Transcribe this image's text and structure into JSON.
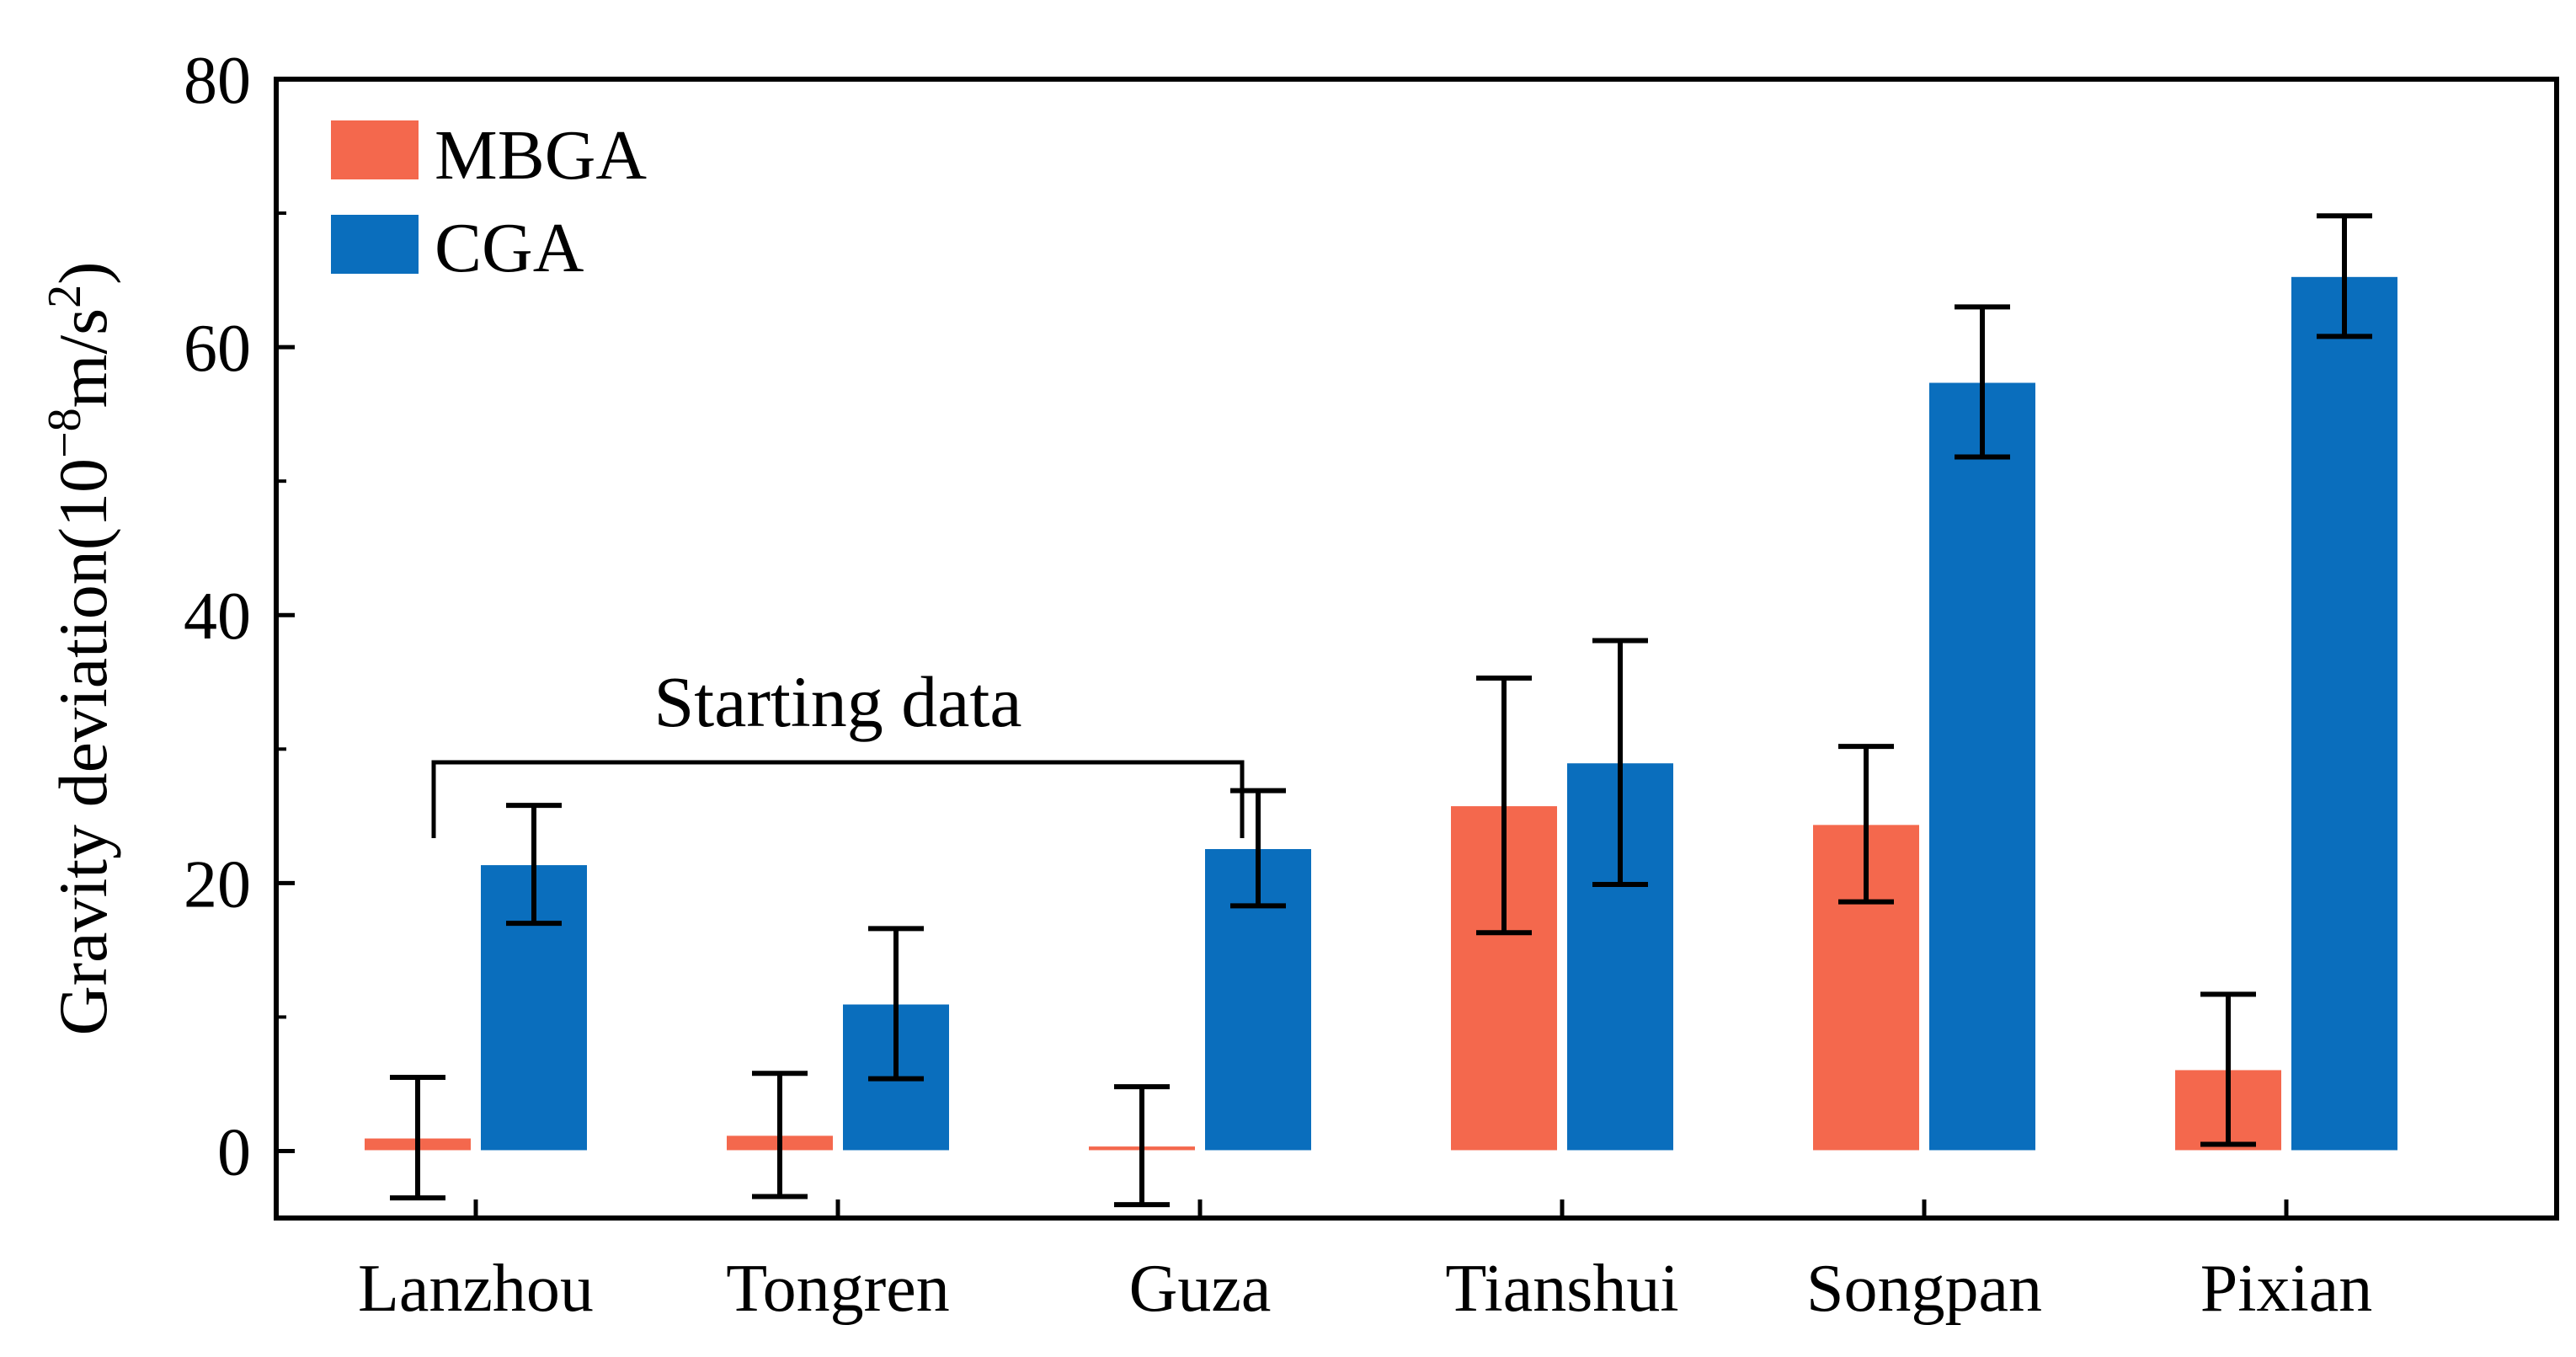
{
  "chart_data": {
    "type": "bar",
    "title": "",
    "xlabel": "",
    "ylabel": "Gravity deviation(10",
    "ylabel_exp1": "−8",
    "ylabel_mid": "m/s",
    "ylabel_exp2": "2",
    "ylabel_end": ")",
    "ylim": [
      -5,
      80
    ],
    "yticks": [
      0,
      20,
      40,
      60,
      80
    ],
    "categories": [
      "Lanzhou",
      "Tongren",
      "Guza",
      "Tianshui",
      "Songpan",
      "Pixian"
    ],
    "series": [
      {
        "name": "MBGA",
        "color": "#F4684D",
        "values": [
          1.0,
          1.2,
          0.4,
          25.8,
          24.4,
          6.1
        ],
        "error": [
          4.5,
          4.6,
          4.4,
          9.5,
          5.8,
          5.6
        ]
      },
      {
        "name": "CGA",
        "color": "#0A6EBD",
        "values": [
          21.4,
          11.0,
          22.6,
          29.0,
          57.4,
          65.3
        ],
        "error": [
          4.4,
          5.6,
          4.3,
          9.1,
          5.6,
          4.5
        ]
      }
    ],
    "legend_position": "top-left",
    "grid": false,
    "annotation": {
      "text": "Starting data",
      "spans": [
        "Lanzhou",
        "Guza"
      ]
    }
  }
}
